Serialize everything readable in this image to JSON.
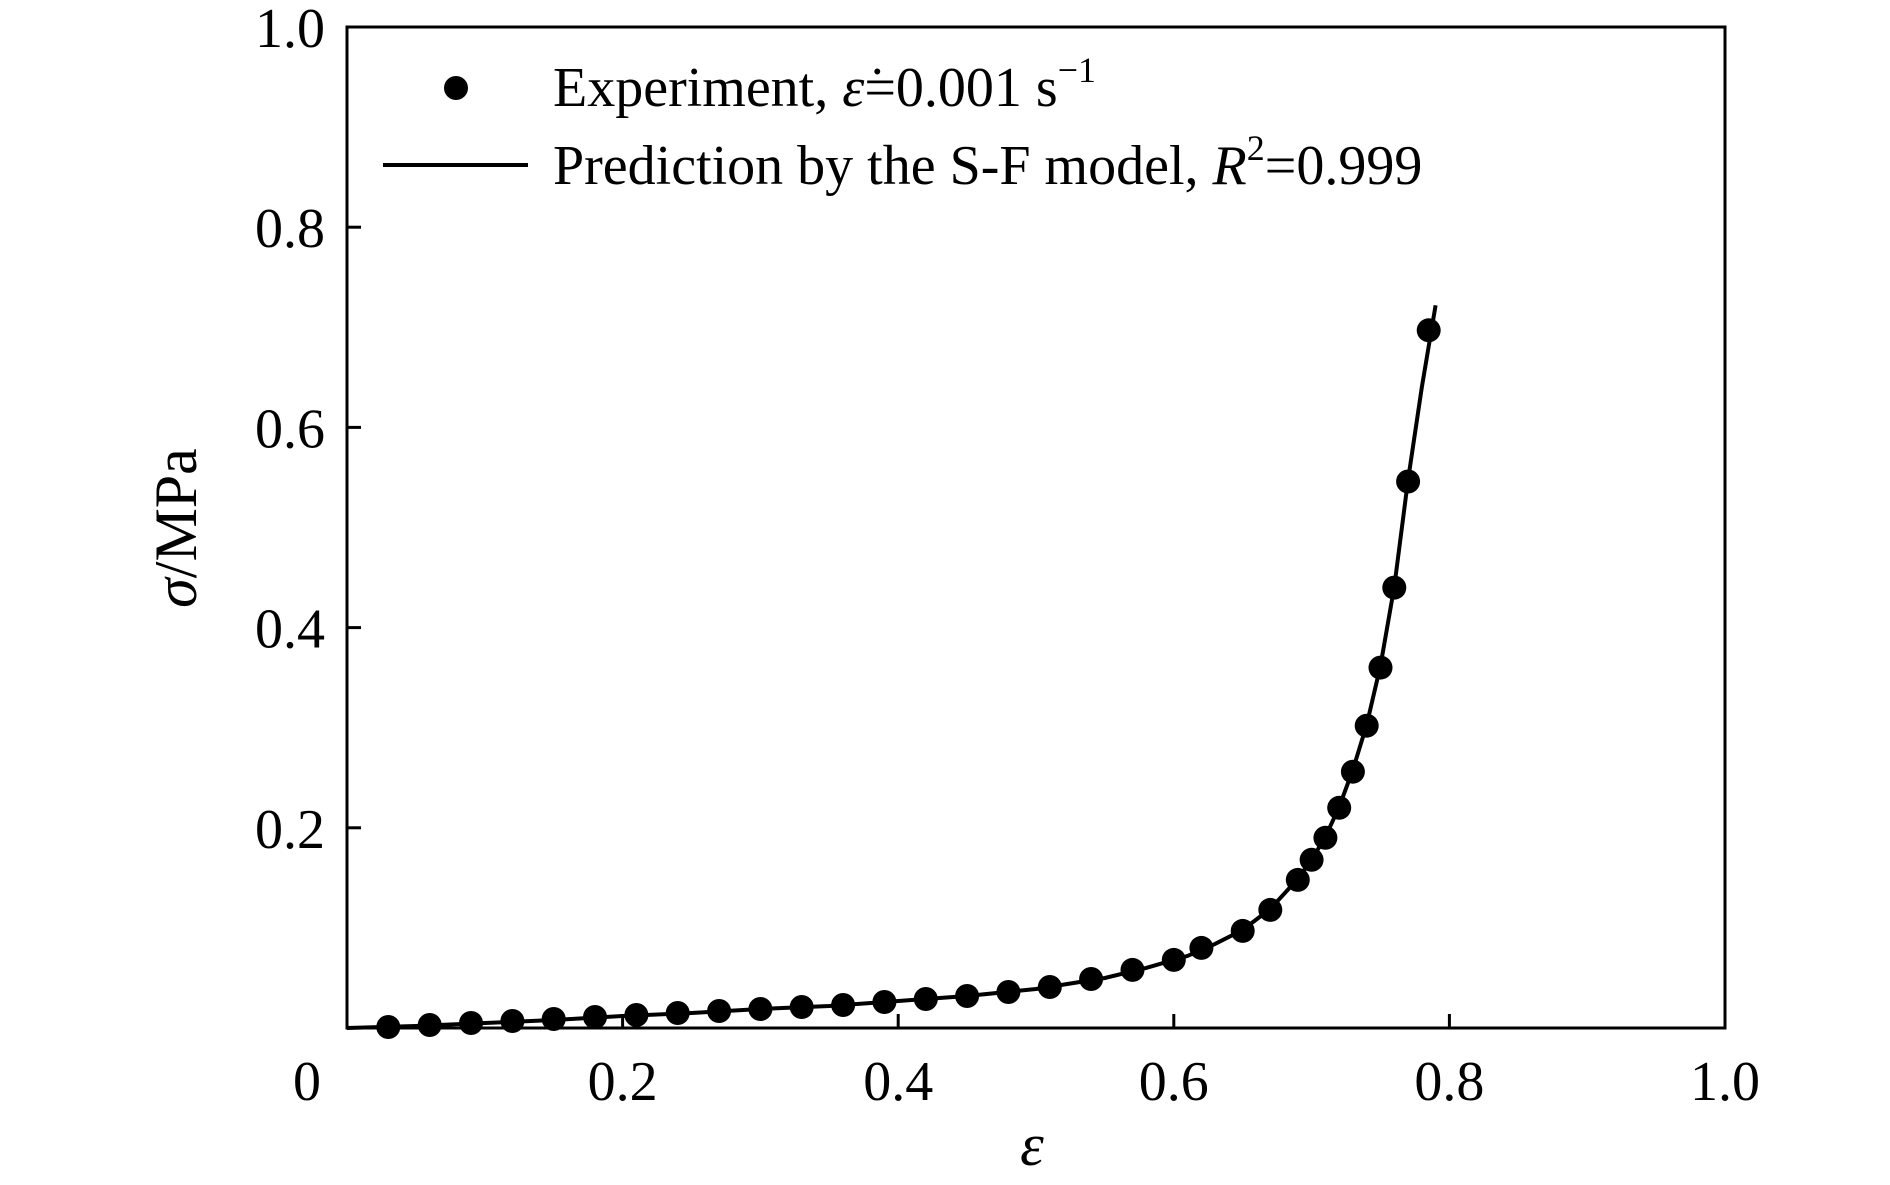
{
  "chart_data": {
    "type": "scatter",
    "title": "",
    "xlabel": "ε",
    "ylabel_symbol": "σ",
    "ylabel_unit": "/MPa",
    "xlim": [
      0,
      1.0
    ],
    "ylim": [
      0,
      1.0
    ],
    "x_ticks": [
      {
        "value": 0,
        "label": "0"
      },
      {
        "value": 0.2,
        "label": "0.2"
      },
      {
        "value": 0.4,
        "label": "0.4"
      },
      {
        "value": 0.6,
        "label": "0.6"
      },
      {
        "value": 0.8,
        "label": "0.8"
      },
      {
        "value": 1.0,
        "label": "1.0"
      }
    ],
    "y_ticks": [
      {
        "value": 0.2,
        "label": "0.2"
      },
      {
        "value": 0.4,
        "label": "0.4"
      },
      {
        "value": 0.6,
        "label": "0.6"
      },
      {
        "value": 0.8,
        "label": "0.8"
      },
      {
        "value": 1.0,
        "label": "1.0"
      }
    ],
    "grid": false,
    "legend_position": "top-left",
    "legend": {
      "experiment": {
        "prefix": "Experiment, ",
        "symbol": "ε̇",
        "rate": "=0.001 s",
        "exponent": "−1"
      },
      "prediction": {
        "prefix": "Prediction by the S-F model, ",
        "symbol": "R",
        "exponent": "2",
        "value": "=0.999"
      }
    },
    "series": [
      {
        "role": "experiment",
        "style": "markers",
        "color": "#000000",
        "points": [
          [
            0.03,
            0.001
          ],
          [
            0.06,
            0.003
          ],
          [
            0.09,
            0.005
          ],
          [
            0.12,
            0.007
          ],
          [
            0.15,
            0.009
          ],
          [
            0.18,
            0.011
          ],
          [
            0.21,
            0.013
          ],
          [
            0.24,
            0.015
          ],
          [
            0.27,
            0.017
          ],
          [
            0.3,
            0.019
          ],
          [
            0.33,
            0.021
          ],
          [
            0.36,
            0.023
          ],
          [
            0.39,
            0.026
          ],
          [
            0.42,
            0.029
          ],
          [
            0.45,
            0.032
          ],
          [
            0.48,
            0.036
          ],
          [
            0.51,
            0.041
          ],
          [
            0.54,
            0.049
          ],
          [
            0.57,
            0.058
          ],
          [
            0.6,
            0.068
          ],
          [
            0.62,
            0.08
          ],
          [
            0.65,
            0.097
          ],
          [
            0.67,
            0.118
          ],
          [
            0.69,
            0.148
          ],
          [
            0.7,
            0.168
          ],
          [
            0.71,
            0.19
          ],
          [
            0.72,
            0.22
          ],
          [
            0.73,
            0.256
          ],
          [
            0.74,
            0.302
          ],
          [
            0.75,
            0.36
          ],
          [
            0.76,
            0.44
          ],
          [
            0.77,
            0.546
          ],
          [
            0.785,
            0.697
          ]
        ]
      },
      {
        "role": "prediction",
        "style": "line",
        "color": "#000000",
        "points": [
          [
            0.0,
            0.0
          ],
          [
            0.05,
            0.002
          ],
          [
            0.1,
            0.005
          ],
          [
            0.15,
            0.008
          ],
          [
            0.2,
            0.012
          ],
          [
            0.25,
            0.015
          ],
          [
            0.3,
            0.019
          ],
          [
            0.35,
            0.022
          ],
          [
            0.4,
            0.027
          ],
          [
            0.45,
            0.032
          ],
          [
            0.5,
            0.039
          ],
          [
            0.55,
            0.05
          ],
          [
            0.58,
            0.06
          ],
          [
            0.61,
            0.072
          ],
          [
            0.63,
            0.084
          ],
          [
            0.65,
            0.098
          ],
          [
            0.67,
            0.119
          ],
          [
            0.69,
            0.149
          ],
          [
            0.7,
            0.168
          ],
          [
            0.71,
            0.191
          ],
          [
            0.72,
            0.221
          ],
          [
            0.73,
            0.258
          ],
          [
            0.74,
            0.303
          ],
          [
            0.75,
            0.362
          ],
          [
            0.76,
            0.441
          ],
          [
            0.77,
            0.548
          ],
          [
            0.78,
            0.64
          ],
          [
            0.79,
            0.722
          ]
        ]
      }
    ]
  }
}
